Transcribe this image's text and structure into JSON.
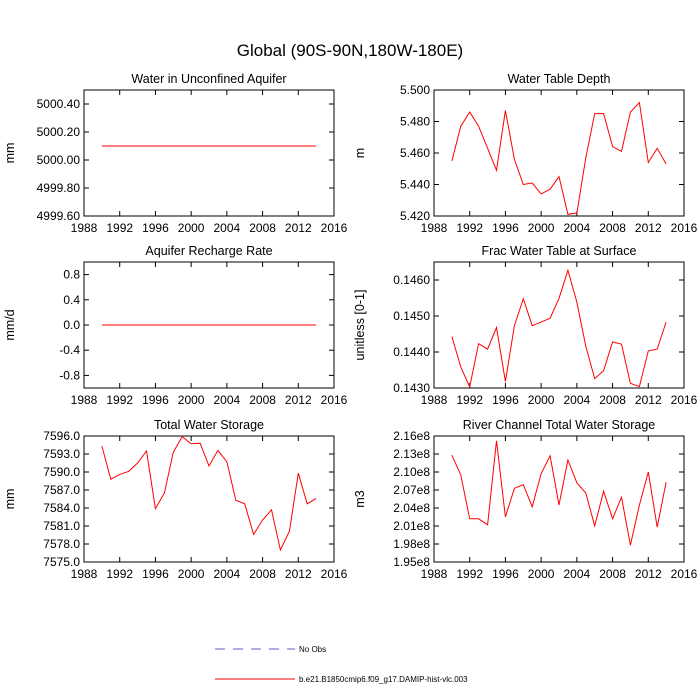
{
  "title": "Global (90S-90N,180W-180E)",
  "legend": {
    "entries": [
      {
        "label": "No Obs",
        "color": "#6a5acd",
        "dash": true
      },
      {
        "label": "b.e21.B1850cmip6.f09_g17.DAMIP-hist-vlc.003",
        "color": "#ff0000",
        "dash": false
      }
    ]
  },
  "chart_data": [
    {
      "type": "line",
      "title": "Water in Unconfined Aquifer",
      "ylabel": "mm",
      "xlim": [
        1988,
        2016
      ],
      "xticks": [
        1988,
        1992,
        1996,
        2000,
        2004,
        2008,
        2012,
        2016
      ],
      "xticklabels": [
        "1988",
        "1992",
        "1996",
        "2000",
        "2004",
        "2008",
        "2012",
        "2016"
      ],
      "ylim": [
        4999.6,
        5000.5
      ],
      "yticks": [
        4999.6,
        4999.8,
        5000.0,
        5000.2,
        5000.4
      ],
      "yticklabels": [
        "4999.60",
        "4999.80",
        "5000.00",
        "5000.20",
        "5000.40"
      ],
      "color": "#ff0000",
      "x": [
        1990,
        2014
      ],
      "y": [
        5000.1,
        5000.1
      ]
    },
    {
      "type": "line",
      "title": "Water Table Depth",
      "ylabel": "m",
      "xlim": [
        1988,
        2016
      ],
      "xticks": [
        1988,
        1992,
        1996,
        2000,
        2004,
        2008,
        2012,
        2016
      ],
      "xticklabels": [
        "1988",
        "1992",
        "1996",
        "2000",
        "2004",
        "2008",
        "2012",
        "2016"
      ],
      "ylim": [
        5.42,
        5.5
      ],
      "yticks": [
        5.42,
        5.44,
        5.46,
        5.48,
        5.5
      ],
      "yticklabels": [
        "5.420",
        "5.440",
        "5.460",
        "5.480",
        "5.500"
      ],
      "color": "#ff0000",
      "x": [
        1990,
        1991,
        1992,
        1993,
        1994,
        1995,
        1996,
        1997,
        1998,
        1999,
        2000,
        2001,
        2002,
        2003,
        2004,
        2005,
        2006,
        2007,
        2008,
        2009,
        2010,
        2011,
        2012,
        2013,
        2014
      ],
      "y": [
        5.455,
        5.477,
        5.486,
        5.477,
        5.463,
        5.449,
        5.487,
        5.456,
        5.44,
        5.441,
        5.434,
        5.437,
        5.445,
        5.421,
        5.422,
        5.457,
        5.485,
        5.485,
        5.464,
        5.461,
        5.486,
        5.492,
        5.454,
        5.463,
        5.453
      ]
    },
    {
      "type": "line",
      "title": "Aquifer Recharge Rate",
      "ylabel": "mm/d",
      "xlim": [
        1988,
        2016
      ],
      "xticks": [
        1988,
        1992,
        1996,
        2000,
        2004,
        2008,
        2012,
        2016
      ],
      "xticklabels": [
        "1988",
        "1992",
        "1996",
        "2000",
        "2004",
        "2008",
        "2012",
        "2016"
      ],
      "ylim": [
        -1.0,
        1.0
      ],
      "yticks": [
        -0.8,
        -0.4,
        0.0,
        0.4,
        0.8
      ],
      "yticklabels": [
        "-0.8",
        "-0.4",
        "0.0",
        "0.4",
        "0.8"
      ],
      "color": "#ff0000",
      "x": [
        1990,
        2014
      ],
      "y": [
        0.0,
        0.0
      ]
    },
    {
      "type": "line",
      "title": "Frac Water Table at Surface",
      "ylabel": "unitless [0-1]",
      "xlim": [
        1988,
        2016
      ],
      "xticks": [
        1988,
        1992,
        1996,
        2000,
        2004,
        2008,
        2012,
        2016
      ],
      "xticklabels": [
        "1988",
        "1992",
        "1996",
        "2000",
        "2004",
        "2008",
        "2012",
        "2016"
      ],
      "ylim": [
        0.143,
        0.1465
      ],
      "yticks": [
        0.143,
        0.144,
        0.145,
        0.146
      ],
      "yticklabels": [
        "0.1430",
        "0.1440",
        "0.1450",
        "0.1460"
      ],
      "color": "#ff0000",
      "x": [
        1990,
        1991,
        1992,
        1993,
        1994,
        1995,
        1996,
        1997,
        1998,
        1999,
        2000,
        2001,
        2002,
        2003,
        2004,
        2005,
        2006,
        2007,
        2008,
        2009,
        2010,
        2011,
        2012,
        2013,
        2014
      ],
      "y": [
        0.14443,
        0.14358,
        0.14303,
        0.14423,
        0.14408,
        0.14468,
        0.14318,
        0.14473,
        0.14548,
        0.14473,
        0.14483,
        0.14494,
        0.14549,
        0.14627,
        0.14538,
        0.14416,
        0.14326,
        0.14348,
        0.14428,
        0.14422,
        0.14313,
        0.14304,
        0.14403,
        0.14408,
        0.14483
      ]
    },
    {
      "type": "line",
      "title": "Total Water Storage",
      "ylabel": "mm",
      "xlim": [
        1988,
        2016
      ],
      "xticks": [
        1988,
        1992,
        1996,
        2000,
        2004,
        2008,
        2012,
        2016
      ],
      "xticklabels": [
        "1988",
        "1992",
        "1996",
        "2000",
        "2004",
        "2008",
        "2012",
        "2016"
      ],
      "ylim": [
        7575.0,
        7596.0
      ],
      "yticks": [
        7575.0,
        7578.0,
        7581.0,
        7584.0,
        7587.0,
        7590.0,
        7593.0,
        7596.0
      ],
      "yticklabels": [
        "7575.0",
        "7578.0",
        "7581.0",
        "7584.0",
        "7587.0",
        "7590.0",
        "7593.0",
        "7596.0"
      ],
      "color": "#ff0000",
      "x": [
        1990,
        1991,
        1992,
        1993,
        1994,
        1995,
        1996,
        1997,
        1998,
        1999,
        2000,
        2001,
        2002,
        2003,
        2004,
        2005,
        2006,
        2007,
        2008,
        2009,
        2010,
        2011,
        2012,
        2013,
        2014
      ],
      "y": [
        7594.3,
        7588.8,
        7589.6,
        7590.1,
        7591.5,
        7593.5,
        7583.9,
        7586.5,
        7593.3,
        7595.9,
        7594.7,
        7594.8,
        7591.0,
        7593.6,
        7591.7,
        7585.3,
        7584.7,
        7579.6,
        7582.0,
        7583.7,
        7577.0,
        7580.1,
        7589.8,
        7584.7,
        7585.6
      ]
    },
    {
      "type": "line",
      "title": "River Channel Total Water Storage",
      "ylabel": "m3",
      "xlim": [
        1988,
        2016
      ],
      "xticks": [
        1988,
        1992,
        1996,
        2000,
        2004,
        2008,
        2012,
        2016
      ],
      "xticklabels": [
        "1988",
        "1992",
        "1996",
        "2000",
        "2004",
        "2008",
        "2012",
        "2016"
      ],
      "ylim": [
        195000000.0,
        216000000.0
      ],
      "yticks": [
        195000000.0,
        198000000.0,
        201000000.0,
        204000000.0,
        207000000.0,
        210000000.0,
        213000000.0,
        216000000.0
      ],
      "yticklabels": [
        "1.95e8",
        "1.98e8",
        "2.01e8",
        "2.04e8",
        "2.07e8",
        "2.10e8",
        "2.13e8",
        "2.16e8"
      ],
      "color": "#ff0000",
      "x": [
        1990,
        1991,
        1992,
        1993,
        1994,
        1995,
        1996,
        1997,
        1998,
        1999,
        2000,
        2001,
        2002,
        2003,
        2004,
        2005,
        2006,
        2007,
        2008,
        2009,
        2010,
        2011,
        2012,
        2013,
        2014
      ],
      "y": [
        212800000.0,
        209500000.0,
        202200000.0,
        202200000.0,
        201200000.0,
        215200000.0,
        202500000.0,
        207300000.0,
        207900000.0,
        204200000.0,
        209700000.0,
        212700000.0,
        204500000.0,
        212000000.0,
        208200000.0,
        206500000.0,
        201000000.0,
        206800000.0,
        202200000.0,
        205800000.0,
        197800000.0,
        204500000.0,
        210000000.0,
        200800000.0,
        208300000.0
      ]
    }
  ]
}
